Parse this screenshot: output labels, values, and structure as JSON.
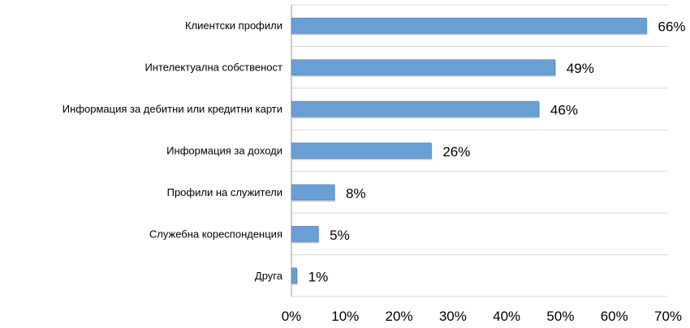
{
  "chart_data": {
    "type": "bar",
    "orientation": "horizontal",
    "categories": [
      "Клиентски профили",
      "Интелектуална собственост",
      "Информация за дебитни или кредитни карти",
      "Информация за доходи",
      "Профили на служители",
      "Служебна кореспонденция",
      "Друга"
    ],
    "values": [
      66,
      49,
      46,
      26,
      8,
      5,
      1
    ],
    "value_labels": [
      "66%",
      "49%",
      "46%",
      "26%",
      "8%",
      "5%",
      "1%"
    ],
    "xlim": [
      0,
      70
    ],
    "xticks": [
      0,
      10,
      20,
      30,
      40,
      50,
      60,
      70
    ],
    "xtick_labels": [
      "0%",
      "10%",
      "20%",
      "30%",
      "40%",
      "50%",
      "60%",
      "70%"
    ],
    "grid": true,
    "bar_color": "#6a9fd4",
    "bar_edge_color": "#4a7fb5",
    "grid_color": "#d9d9d9"
  }
}
